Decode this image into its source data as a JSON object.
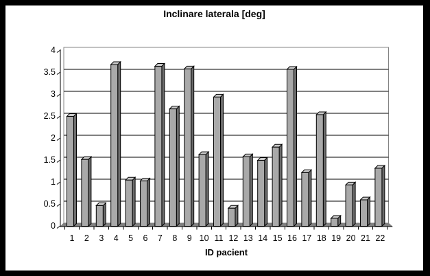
{
  "chart_data": {
    "type": "bar",
    "style": "3d-column",
    "title": "Inclinare laterala [deg]",
    "xlabel": "ID pacient",
    "ylabel": "",
    "categories": [
      "1",
      "2",
      "3",
      "4",
      "5",
      "6",
      "7",
      "8",
      "9",
      "10",
      "11",
      "12",
      "13",
      "14",
      "15",
      "16",
      "17",
      "18",
      "19",
      "20",
      "21",
      "22"
    ],
    "values": [
      2.5,
      1.52,
      0.47,
      3.68,
      1.05,
      1.03,
      3.64,
      2.67,
      3.58,
      1.63,
      2.94,
      0.41,
      1.58,
      1.5,
      1.8,
      3.57,
      1.22,
      2.54,
      0.18,
      0.94,
      0.6,
      1.32
    ],
    "ylim": [
      0,
      4
    ],
    "ytick_step": 0.5,
    "ytick_labels": [
      "4",
      "3.5",
      "3",
      "2.5",
      "2",
      "1.5",
      "1",
      "0.5",
      "0"
    ],
    "grid": "horizontal",
    "legend": "none",
    "colors": {
      "bar_front": "#A9A9A9",
      "bar_top": "#C9C9C9",
      "bar_side": "#6B6B6B",
      "floor": "#818181",
      "wall_border": "#848484",
      "gridline": "#000000",
      "axis": "#000000",
      "background": "#FFFFFF",
      "frame": "#000000",
      "text": "#000000"
    }
  }
}
